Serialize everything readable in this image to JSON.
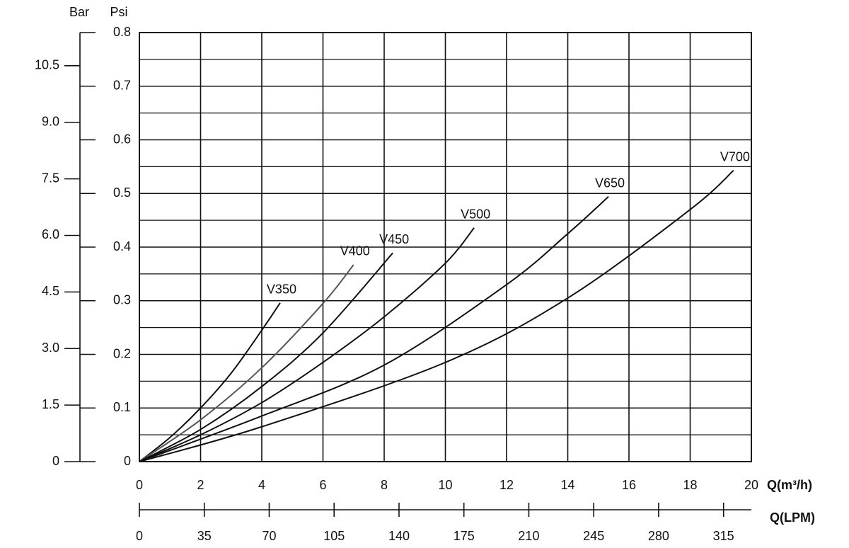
{
  "chart_data": {
    "type": "line",
    "y_label": "Psi",
    "y2_label": "Bar",
    "x_label": "Q(m³/h)",
    "x2_label": "Q(LPM)",
    "xlim": [
      0,
      20
    ],
    "xticks": [
      0,
      2,
      4,
      6,
      8,
      10,
      12,
      14,
      16,
      18,
      20
    ],
    "x2lim": [
      0,
      330
    ],
    "x2ticks": [
      0,
      35,
      70,
      105,
      140,
      175,
      210,
      245,
      280,
      315
    ],
    "ylim": [
      0,
      0.8
    ],
    "yticks": [
      0,
      0.1,
      0.2,
      0.3,
      0.4,
      0.5,
      0.6,
      0.7,
      0.8
    ],
    "y2lim": [
      0,
      11.38
    ],
    "y2ticks": [
      0,
      1.5,
      {
        "value": 3,
        "label": "3.0"
      },
      4.5,
      {
        "value": 6,
        "label": "6.0"
      },
      7.5,
      {
        "value": 9,
        "label": "9.0"
      },
      10.5
    ],
    "grid": true,
    "series": [
      {
        "name": "V350",
        "color": "#111111",
        "x": [
          0,
          1,
          2,
          3,
          4,
          4.6
        ],
        "values": [
          0,
          0.045,
          0.1,
          0.165,
          0.245,
          0.296
        ]
      },
      {
        "name": "V400",
        "color": "#555555",
        "x": [
          0,
          2,
          4,
          6,
          7
        ],
        "values": [
          0,
          0.078,
          0.175,
          0.295,
          0.367
        ]
      },
      {
        "name": "V450",
        "color": "#111111",
        "x": [
          0,
          2,
          4,
          6,
          8.28
        ],
        "values": [
          0,
          0.06,
          0.14,
          0.24,
          0.389
        ]
      },
      {
        "name": "V500",
        "color": "#111111",
        "x": [
          0,
          2,
          4,
          6,
          8,
          10,
          10.94
        ],
        "values": [
          0,
          0.05,
          0.11,
          0.185,
          0.27,
          0.37,
          0.436
        ]
      },
      {
        "name": "V650",
        "color": "#111111",
        "x": [
          0,
          4,
          8,
          12,
          14,
          15.33
        ],
        "values": [
          0,
          0.085,
          0.18,
          0.33,
          0.425,
          0.494
        ]
      },
      {
        "name": "V700",
        "color": "#111111",
        "x": [
          0,
          4,
          10,
          14,
          18,
          19.42
        ],
        "values": [
          0,
          0.065,
          0.185,
          0.305,
          0.47,
          0.543
        ]
      }
    ]
  }
}
